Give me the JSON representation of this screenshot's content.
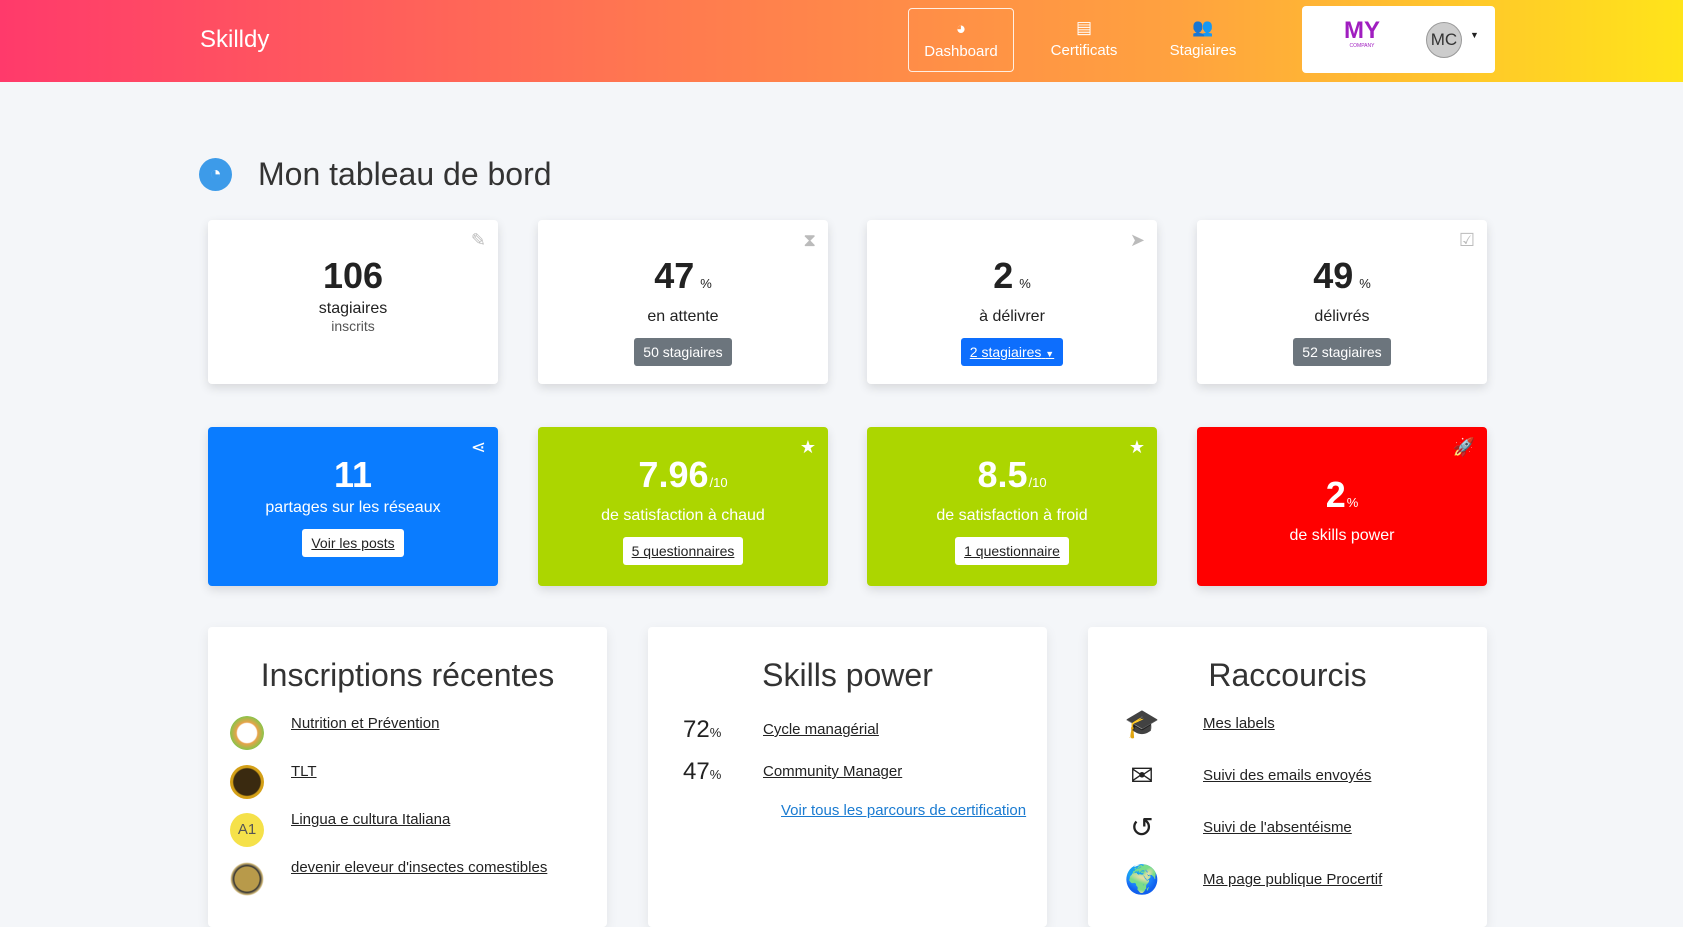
{
  "nav": {
    "brand": "Skilldy",
    "items": [
      {
        "label": "Dashboard",
        "icon": "dashboard-icon",
        "active": true
      },
      {
        "label": "Certificats",
        "icon": "certificate-icon"
      },
      {
        "label": "Stagiaires",
        "icon": "users-icon"
      }
    ],
    "company_logo": "MY COMPANY",
    "avatar": "MC"
  },
  "page": {
    "title": "Mon tableau de bord"
  },
  "stats": [
    {
      "value": "106",
      "unit": "",
      "label": "stagiaires",
      "sub": "inscrits",
      "icon": "edit-icon"
    },
    {
      "value": "47",
      "unit": "%",
      "label": "en attente",
      "button": "50 stagiaires",
      "icon": "hourglass-icon"
    },
    {
      "value": "2",
      "unit": "%",
      "label": "à délivrer",
      "button": "2 stagiaires",
      "icon": "paper-plane-icon"
    },
    {
      "value": "49",
      "unit": "%",
      "label": "délivrés",
      "button": "52 stagiaires",
      "icon": "check-square-icon"
    }
  ],
  "highlights": [
    {
      "value": "11",
      "unit": "",
      "label": "partages sur les réseaux",
      "button": "Voir les posts",
      "color": "#0a7cff",
      "icon": "share-icon"
    },
    {
      "value": "7.96",
      "unit": "/10",
      "label": "de satisfaction à chaud",
      "button": "5 questionnaires",
      "color": "#acd600",
      "icon": "star-icon"
    },
    {
      "value": "8.5",
      "unit": "/10",
      "label": "de satisfaction à froid",
      "button": "1 questionnaire",
      "color": "#acd600",
      "icon": "star-icon"
    },
    {
      "value": "2",
      "unit": "%",
      "label": "de skills power",
      "color": "#ff0000",
      "icon": "rocket-icon"
    }
  ],
  "inscriptions": {
    "title": "Inscriptions récentes",
    "items": [
      "Nutrition et Prévention",
      "TLT",
      "Lingua e cultura Italiana",
      "devenir eleveur d'insectes comestibles"
    ],
    "badge_a1": "A1"
  },
  "skills": {
    "title": "Skills power",
    "items": [
      {
        "pct": "72",
        "unit": "%",
        "name": "Cycle managérial"
      },
      {
        "pct": "47",
        "unit": "%",
        "name": "Community Manager"
      }
    ],
    "link": "Voir tous les parcours de certification"
  },
  "shortcuts": {
    "title": "Raccourcis",
    "items": [
      {
        "label": "Mes labels",
        "icon": "graduation-cap-icon"
      },
      {
        "label": "Suivi des emails envoyés",
        "icon": "envelope-icon"
      },
      {
        "label": "Suivi de l'absentéisme",
        "icon": "history-icon"
      },
      {
        "label": "Ma page publique Procertif",
        "icon": "globe-icon"
      }
    ]
  }
}
